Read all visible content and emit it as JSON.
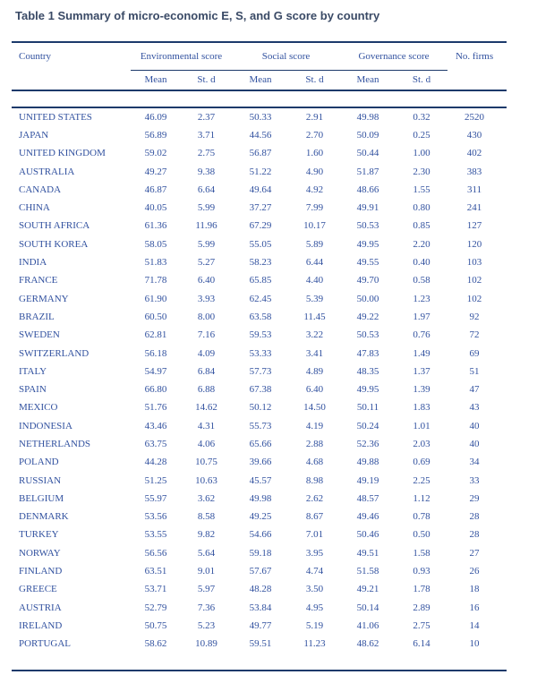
{
  "caption": "Table 1 Summary of micro-economic E, S, and G score by country",
  "colors": {
    "text_blue": "#31519f",
    "rule": "#1c3a6b",
    "caption": "#3a4a66"
  },
  "table": {
    "headers": {
      "country": "Country",
      "environmental": "Environmental score",
      "social": "Social score",
      "governance": "Governance score",
      "firms": "No. firms",
      "mean": "Mean",
      "std": "St. d"
    },
    "rows": [
      {
        "country": "UNITED STATES",
        "env_mean": "46.09",
        "env_std": "2.37",
        "soc_mean": "50.33",
        "soc_std": "2.91",
        "gov_mean": "49.98",
        "gov_std": "0.32",
        "firms": "2520"
      },
      {
        "country": "JAPAN",
        "env_mean": "56.89",
        "env_std": "3.71",
        "soc_mean": "44.56",
        "soc_std": "2.70",
        "gov_mean": "50.09",
        "gov_std": "0.25",
        "firms": "430"
      },
      {
        "country": "UNITED KINGDOM",
        "env_mean": "59.02",
        "env_std": "2.75",
        "soc_mean": "56.87",
        "soc_std": "1.60",
        "gov_mean": "50.44",
        "gov_std": "1.00",
        "firms": "402"
      },
      {
        "country": "AUSTRALIA",
        "env_mean": "49.27",
        "env_std": "9.38",
        "soc_mean": "51.22",
        "soc_std": "4.90",
        "gov_mean": "51.87",
        "gov_std": "2.30",
        "firms": "383"
      },
      {
        "country": "CANADA",
        "env_mean": "46.87",
        "env_std": "6.64",
        "soc_mean": "49.64",
        "soc_std": "4.92",
        "gov_mean": "48.66",
        "gov_std": "1.55",
        "firms": "311"
      },
      {
        "country": "CHINA",
        "env_mean": "40.05",
        "env_std": "5.99",
        "soc_mean": "37.27",
        "soc_std": "7.99",
        "gov_mean": "49.91",
        "gov_std": "0.80",
        "firms": "241"
      },
      {
        "country": "SOUTH AFRICA",
        "env_mean": "61.36",
        "env_std": "11.96",
        "soc_mean": "67.29",
        "soc_std": "10.17",
        "gov_mean": "50.53",
        "gov_std": "0.85",
        "firms": "127"
      },
      {
        "country": "SOUTH KOREA",
        "env_mean": "58.05",
        "env_std": "5.99",
        "soc_mean": "55.05",
        "soc_std": "5.89",
        "gov_mean": "49.95",
        "gov_std": "2.20",
        "firms": "120"
      },
      {
        "country": "INDIA",
        "env_mean": "51.83",
        "env_std": "5.27",
        "soc_mean": "58.23",
        "soc_std": "6.44",
        "gov_mean": "49.55",
        "gov_std": "0.40",
        "firms": "103"
      },
      {
        "country": "FRANCE",
        "env_mean": "71.78",
        "env_std": "6.40",
        "soc_mean": "65.85",
        "soc_std": "4.40",
        "gov_mean": "49.70",
        "gov_std": "0.58",
        "firms": "102"
      },
      {
        "country": "GERMANY",
        "env_mean": "61.90",
        "env_std": "3.93",
        "soc_mean": "62.45",
        "soc_std": "5.39",
        "gov_mean": "50.00",
        "gov_std": "1.23",
        "firms": "102"
      },
      {
        "country": "BRAZIL",
        "env_mean": "60.50",
        "env_std": "8.00",
        "soc_mean": "63.58",
        "soc_std": "11.45",
        "gov_mean": "49.22",
        "gov_std": "1.97",
        "firms": "92"
      },
      {
        "country": "SWEDEN",
        "env_mean": "62.81",
        "env_std": "7.16",
        "soc_mean": "59.53",
        "soc_std": "3.22",
        "gov_mean": "50.53",
        "gov_std": "0.76",
        "firms": "72"
      },
      {
        "country": "SWITZERLAND",
        "env_mean": "56.18",
        "env_std": "4.09",
        "soc_mean": "53.33",
        "soc_std": "3.41",
        "gov_mean": "47.83",
        "gov_std": "1.49",
        "firms": "69"
      },
      {
        "country": "ITALY",
        "env_mean": "54.97",
        "env_std": "6.84",
        "soc_mean": "57.73",
        "soc_std": "4.89",
        "gov_mean": "48.35",
        "gov_std": "1.37",
        "firms": "51"
      },
      {
        "country": "SPAIN",
        "env_mean": "66.80",
        "env_std": "6.88",
        "soc_mean": "67.38",
        "soc_std": "6.40",
        "gov_mean": "49.95",
        "gov_std": "1.39",
        "firms": "47"
      },
      {
        "country": "MEXICO",
        "env_mean": "51.76",
        "env_std": "14.62",
        "soc_mean": "50.12",
        "soc_std": "14.50",
        "gov_mean": "50.11",
        "gov_std": "1.83",
        "firms": "43"
      },
      {
        "country": "INDONESIA",
        "env_mean": "43.46",
        "env_std": "4.31",
        "soc_mean": "55.73",
        "soc_std": "4.19",
        "gov_mean": "50.24",
        "gov_std": "1.01",
        "firms": "40"
      },
      {
        "country": "NETHERLANDS",
        "env_mean": "63.75",
        "env_std": "4.06",
        "soc_mean": "65.66",
        "soc_std": "2.88",
        "gov_mean": "52.36",
        "gov_std": "2.03",
        "firms": "40"
      },
      {
        "country": "POLAND",
        "env_mean": "44.28",
        "env_std": "10.75",
        "soc_mean": "39.66",
        "soc_std": "4.68",
        "gov_mean": "49.88",
        "gov_std": "0.69",
        "firms": "34"
      },
      {
        "country": "RUSSIAN",
        "env_mean": "51.25",
        "env_std": "10.63",
        "soc_mean": "45.57",
        "soc_std": "8.98",
        "gov_mean": "49.19",
        "gov_std": "2.25",
        "firms": "33"
      },
      {
        "country": "BELGIUM",
        "env_mean": "55.97",
        "env_std": "3.62",
        "soc_mean": "49.98",
        "soc_std": "2.62",
        "gov_mean": "48.57",
        "gov_std": "1.12",
        "firms": "29"
      },
      {
        "country": "DENMARK",
        "env_mean": "53.56",
        "env_std": "8.58",
        "soc_mean": "49.25",
        "soc_std": "8.67",
        "gov_mean": "49.46",
        "gov_std": "0.78",
        "firms": "28"
      },
      {
        "country": "TURKEY",
        "env_mean": "53.55",
        "env_std": "9.82",
        "soc_mean": "54.66",
        "soc_std": "7.01",
        "gov_mean": "50.46",
        "gov_std": "0.50",
        "firms": "28"
      },
      {
        "country": "NORWAY",
        "env_mean": "56.56",
        "env_std": "5.64",
        "soc_mean": "59.18",
        "soc_std": "3.95",
        "gov_mean": "49.51",
        "gov_std": "1.58",
        "firms": "27"
      },
      {
        "country": "FINLAND",
        "env_mean": "63.51",
        "env_std": "9.01",
        "soc_mean": "57.67",
        "soc_std": "4.74",
        "gov_mean": "51.58",
        "gov_std": "0.93",
        "firms": "26"
      },
      {
        "country": "GREECE",
        "env_mean": "53.71",
        "env_std": "5.97",
        "soc_mean": "48.28",
        "soc_std": "3.50",
        "gov_mean": "49.21",
        "gov_std": "1.78",
        "firms": "18"
      },
      {
        "country": "AUSTRIA",
        "env_mean": "52.79",
        "env_std": "7.36",
        "soc_mean": "53.84",
        "soc_std": "4.95",
        "gov_mean": "50.14",
        "gov_std": "2.89",
        "firms": "16"
      },
      {
        "country": "IRELAND",
        "env_mean": "50.75",
        "env_std": "5.23",
        "soc_mean": "49.77",
        "soc_std": "5.19",
        "gov_mean": "41.06",
        "gov_std": "2.75",
        "firms": "14"
      },
      {
        "country": "PORTUGAL",
        "env_mean": "58.62",
        "env_std": "10.89",
        "soc_mean": "59.51",
        "soc_std": "11.23",
        "gov_mean": "48.62",
        "gov_std": "6.14",
        "firms": "10"
      }
    ]
  }
}
